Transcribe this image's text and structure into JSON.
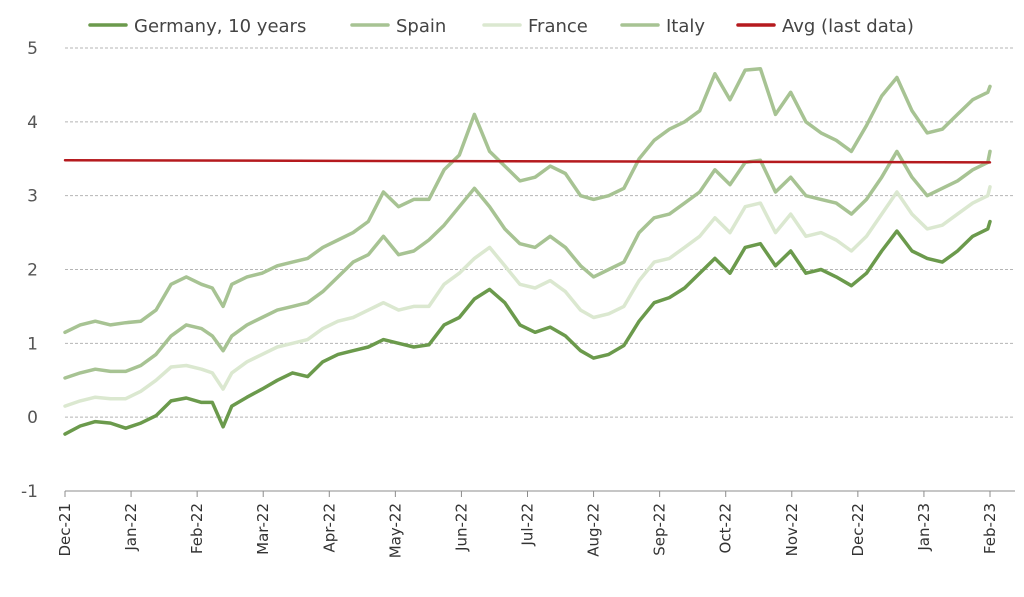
{
  "chart_data": {
    "type": "line",
    "title": "",
    "xlabel": "",
    "ylabel": "",
    "ylim": [
      -1,
      5
    ],
    "yticks": [
      "-1",
      "0",
      "1",
      "2",
      "3",
      "4",
      "5"
    ],
    "grid": true,
    "legend_position": "top",
    "x_tick_labels": [
      "Dec-21",
      "Jan-22",
      "Feb-22",
      "Mar-22",
      "Apr-22",
      "May-22",
      "Jun-22",
      "Jul-22",
      "Aug-22",
      "Sep-22",
      "Oct-22",
      "Nov-22",
      "Dec-22",
      "Jan-23",
      "Feb-23"
    ],
    "x_range": [
      "2021-12-01",
      "2023-02-01"
    ],
    "series": [
      {
        "name": "Germany, 10 years",
        "color": "#6b9a4c",
        "width": 3.5,
        "points": [
          [
            "2021-12-01",
            -0.23
          ],
          [
            "2021-12-08",
            -0.12
          ],
          [
            "2021-12-15",
            -0.06
          ],
          [
            "2021-12-22",
            -0.08
          ],
          [
            "2021-12-29",
            -0.15
          ],
          [
            "2022-01-05",
            -0.08
          ],
          [
            "2022-01-12",
            0.02
          ],
          [
            "2022-01-19",
            0.22
          ],
          [
            "2022-01-26",
            0.26
          ],
          [
            "2022-02-02",
            0.2
          ],
          [
            "2022-02-07",
            0.2
          ],
          [
            "2022-02-12",
            -0.13
          ],
          [
            "2022-02-16",
            0.15
          ],
          [
            "2022-02-23",
            0.27
          ],
          [
            "2022-03-02",
            0.38
          ],
          [
            "2022-03-09",
            0.5
          ],
          [
            "2022-03-16",
            0.6
          ],
          [
            "2022-03-23",
            0.55
          ],
          [
            "2022-03-30",
            0.75
          ],
          [
            "2022-04-06",
            0.85
          ],
          [
            "2022-04-13",
            0.9
          ],
          [
            "2022-04-20",
            0.95
          ],
          [
            "2022-04-27",
            1.05
          ],
          [
            "2022-05-04",
            1.0
          ],
          [
            "2022-05-11",
            0.95
          ],
          [
            "2022-05-18",
            0.98
          ],
          [
            "2022-05-25",
            1.25
          ],
          [
            "2022-06-01",
            1.35
          ],
          [
            "2022-06-08",
            1.6
          ],
          [
            "2022-06-15",
            1.73
          ],
          [
            "2022-06-22",
            1.55
          ],
          [
            "2022-06-29",
            1.25
          ],
          [
            "2022-07-06",
            1.15
          ],
          [
            "2022-07-13",
            1.22
          ],
          [
            "2022-07-20",
            1.1
          ],
          [
            "2022-07-27",
            0.9
          ],
          [
            "2022-08-02",
            0.8
          ],
          [
            "2022-08-09",
            0.85
          ],
          [
            "2022-08-16",
            0.97
          ],
          [
            "2022-08-23",
            1.3
          ],
          [
            "2022-08-30",
            1.55
          ],
          [
            "2022-09-06",
            1.62
          ],
          [
            "2022-09-13",
            1.75
          ],
          [
            "2022-09-20",
            1.95
          ],
          [
            "2022-09-27",
            2.15
          ],
          [
            "2022-10-04",
            1.95
          ],
          [
            "2022-10-11",
            2.3
          ],
          [
            "2022-10-18",
            2.35
          ],
          [
            "2022-10-25",
            2.05
          ],
          [
            "2022-11-01",
            2.25
          ],
          [
            "2022-11-08",
            1.95
          ],
          [
            "2022-11-15",
            2.0
          ],
          [
            "2022-11-22",
            1.9
          ],
          [
            "2022-11-29",
            1.78
          ],
          [
            "2022-12-06",
            1.95
          ],
          [
            "2022-12-13",
            2.25
          ],
          [
            "2022-12-20",
            2.52
          ],
          [
            "2022-12-27",
            2.25
          ],
          [
            "2023-01-03",
            2.15
          ],
          [
            "2023-01-10",
            2.1
          ],
          [
            "2023-01-17",
            2.25
          ],
          [
            "2023-01-24",
            2.45
          ],
          [
            "2023-01-31",
            2.55
          ],
          [
            "2023-02-01",
            2.65
          ]
        ]
      },
      {
        "name": "Spain",
        "color": "#a7c393",
        "width": 3.5,
        "points": [
          [
            "2021-12-01",
            0.53
          ],
          [
            "2021-12-08",
            0.6
          ],
          [
            "2021-12-15",
            0.65
          ],
          [
            "2021-12-22",
            0.62
          ],
          [
            "2021-12-29",
            0.62
          ],
          [
            "2022-01-05",
            0.7
          ],
          [
            "2022-01-12",
            0.85
          ],
          [
            "2022-01-19",
            1.1
          ],
          [
            "2022-01-26",
            1.25
          ],
          [
            "2022-02-02",
            1.2
          ],
          [
            "2022-02-07",
            1.1
          ],
          [
            "2022-02-12",
            0.9
          ],
          [
            "2022-02-16",
            1.1
          ],
          [
            "2022-02-23",
            1.25
          ],
          [
            "2022-03-02",
            1.35
          ],
          [
            "2022-03-09",
            1.45
          ],
          [
            "2022-03-16",
            1.5
          ],
          [
            "2022-03-23",
            1.55
          ],
          [
            "2022-03-30",
            1.7
          ],
          [
            "2022-04-06",
            1.9
          ],
          [
            "2022-04-13",
            2.1
          ],
          [
            "2022-04-20",
            2.2
          ],
          [
            "2022-04-27",
            2.45
          ],
          [
            "2022-05-04",
            2.2
          ],
          [
            "2022-05-11",
            2.25
          ],
          [
            "2022-05-18",
            2.4
          ],
          [
            "2022-05-25",
            2.6
          ],
          [
            "2022-06-01",
            2.85
          ],
          [
            "2022-06-08",
            3.1
          ],
          [
            "2022-06-15",
            2.85
          ],
          [
            "2022-06-22",
            2.55
          ],
          [
            "2022-06-29",
            2.35
          ],
          [
            "2022-07-06",
            2.3
          ],
          [
            "2022-07-13",
            2.45
          ],
          [
            "2022-07-20",
            2.3
          ],
          [
            "2022-07-27",
            2.05
          ],
          [
            "2022-08-02",
            1.9
          ],
          [
            "2022-08-09",
            2.0
          ],
          [
            "2022-08-16",
            2.1
          ],
          [
            "2022-08-23",
            2.5
          ],
          [
            "2022-08-30",
            2.7
          ],
          [
            "2022-09-06",
            2.75
          ],
          [
            "2022-09-13",
            2.9
          ],
          [
            "2022-09-20",
            3.05
          ],
          [
            "2022-09-27",
            3.35
          ],
          [
            "2022-10-04",
            3.15
          ],
          [
            "2022-10-11",
            3.45
          ],
          [
            "2022-10-18",
            3.48
          ],
          [
            "2022-10-25",
            3.05
          ],
          [
            "2022-11-01",
            3.25
          ],
          [
            "2022-11-08",
            3.0
          ],
          [
            "2022-11-15",
            2.95
          ],
          [
            "2022-11-22",
            2.9
          ],
          [
            "2022-11-29",
            2.75
          ],
          [
            "2022-12-06",
            2.95
          ],
          [
            "2022-12-13",
            3.25
          ],
          [
            "2022-12-20",
            3.6
          ],
          [
            "2022-12-27",
            3.25
          ],
          [
            "2023-01-03",
            3.0
          ],
          [
            "2023-01-10",
            3.1
          ],
          [
            "2023-01-17",
            3.2
          ],
          [
            "2023-01-24",
            3.35
          ],
          [
            "2023-01-31",
            3.45
          ],
          [
            "2023-02-01",
            3.6
          ]
        ]
      },
      {
        "name": "France",
        "color": "#dbe8d0",
        "width": 3.5,
        "points": [
          [
            "2021-12-01",
            0.15
          ],
          [
            "2021-12-08",
            0.22
          ],
          [
            "2021-12-15",
            0.27
          ],
          [
            "2021-12-22",
            0.25
          ],
          [
            "2021-12-29",
            0.25
          ],
          [
            "2022-01-05",
            0.35
          ],
          [
            "2022-01-12",
            0.5
          ],
          [
            "2022-01-19",
            0.68
          ],
          [
            "2022-01-26",
            0.7
          ],
          [
            "2022-02-02",
            0.65
          ],
          [
            "2022-02-07",
            0.6
          ],
          [
            "2022-02-12",
            0.38
          ],
          [
            "2022-02-16",
            0.6
          ],
          [
            "2022-02-23",
            0.75
          ],
          [
            "2022-03-02",
            0.85
          ],
          [
            "2022-03-09",
            0.95
          ],
          [
            "2022-03-16",
            1.0
          ],
          [
            "2022-03-23",
            1.05
          ],
          [
            "2022-03-30",
            1.2
          ],
          [
            "2022-04-06",
            1.3
          ],
          [
            "2022-04-13",
            1.35
          ],
          [
            "2022-04-20",
            1.45
          ],
          [
            "2022-04-27",
            1.55
          ],
          [
            "2022-05-04",
            1.45
          ],
          [
            "2022-05-11",
            1.5
          ],
          [
            "2022-05-18",
            1.5
          ],
          [
            "2022-05-25",
            1.8
          ],
          [
            "2022-06-01",
            1.95
          ],
          [
            "2022-06-08",
            2.15
          ],
          [
            "2022-06-15",
            2.3
          ],
          [
            "2022-06-22",
            2.05
          ],
          [
            "2022-06-29",
            1.8
          ],
          [
            "2022-07-06",
            1.75
          ],
          [
            "2022-07-13",
            1.85
          ],
          [
            "2022-07-20",
            1.7
          ],
          [
            "2022-07-27",
            1.45
          ],
          [
            "2022-08-02",
            1.35
          ],
          [
            "2022-08-09",
            1.4
          ],
          [
            "2022-08-16",
            1.5
          ],
          [
            "2022-08-23",
            1.85
          ],
          [
            "2022-08-30",
            2.1
          ],
          [
            "2022-09-06",
            2.15
          ],
          [
            "2022-09-13",
            2.3
          ],
          [
            "2022-09-20",
            2.45
          ],
          [
            "2022-09-27",
            2.7
          ],
          [
            "2022-10-04",
            2.5
          ],
          [
            "2022-10-11",
            2.85
          ],
          [
            "2022-10-18",
            2.9
          ],
          [
            "2022-10-25",
            2.5
          ],
          [
            "2022-11-01",
            2.75
          ],
          [
            "2022-11-08",
            2.45
          ],
          [
            "2022-11-15",
            2.5
          ],
          [
            "2022-11-22",
            2.4
          ],
          [
            "2022-11-29",
            2.25
          ],
          [
            "2022-12-06",
            2.45
          ],
          [
            "2022-12-13",
            2.75
          ],
          [
            "2022-12-20",
            3.05
          ],
          [
            "2022-12-27",
            2.75
          ],
          [
            "2023-01-03",
            2.55
          ],
          [
            "2023-01-10",
            2.6
          ],
          [
            "2023-01-17",
            2.75
          ],
          [
            "2023-01-24",
            2.9
          ],
          [
            "2023-01-31",
            3.0
          ],
          [
            "2023-02-01",
            3.12
          ]
        ]
      },
      {
        "name": "Italy",
        "color": "#a7c393",
        "width": 3.5,
        "points": [
          [
            "2021-12-01",
            1.15
          ],
          [
            "2021-12-08",
            1.25
          ],
          [
            "2021-12-15",
            1.3
          ],
          [
            "2021-12-22",
            1.25
          ],
          [
            "2021-12-29",
            1.28
          ],
          [
            "2022-01-05",
            1.3
          ],
          [
            "2022-01-12",
            1.45
          ],
          [
            "2022-01-19",
            1.8
          ],
          [
            "2022-01-26",
            1.9
          ],
          [
            "2022-02-02",
            1.8
          ],
          [
            "2022-02-07",
            1.75
          ],
          [
            "2022-02-12",
            1.5
          ],
          [
            "2022-02-16",
            1.8
          ],
          [
            "2022-02-23",
            1.9
          ],
          [
            "2022-03-02",
            1.95
          ],
          [
            "2022-03-09",
            2.05
          ],
          [
            "2022-03-16",
            2.1
          ],
          [
            "2022-03-23",
            2.15
          ],
          [
            "2022-03-30",
            2.3
          ],
          [
            "2022-04-06",
            2.4
          ],
          [
            "2022-04-13",
            2.5
          ],
          [
            "2022-04-20",
            2.65
          ],
          [
            "2022-04-27",
            3.05
          ],
          [
            "2022-05-04",
            2.85
          ],
          [
            "2022-05-11",
            2.95
          ],
          [
            "2022-05-18",
            2.95
          ],
          [
            "2022-05-25",
            3.35
          ],
          [
            "2022-06-01",
            3.55
          ],
          [
            "2022-06-08",
            4.1
          ],
          [
            "2022-06-15",
            3.6
          ],
          [
            "2022-06-22",
            3.4
          ],
          [
            "2022-06-29",
            3.2
          ],
          [
            "2022-07-06",
            3.25
          ],
          [
            "2022-07-13",
            3.4
          ],
          [
            "2022-07-20",
            3.3
          ],
          [
            "2022-07-27",
            3.0
          ],
          [
            "2022-08-02",
            2.95
          ],
          [
            "2022-08-09",
            3.0
          ],
          [
            "2022-08-16",
            3.1
          ],
          [
            "2022-08-23",
            3.5
          ],
          [
            "2022-08-30",
            3.75
          ],
          [
            "2022-09-06",
            3.9
          ],
          [
            "2022-09-13",
            4.0
          ],
          [
            "2022-09-20",
            4.15
          ],
          [
            "2022-09-27",
            4.65
          ],
          [
            "2022-10-04",
            4.3
          ],
          [
            "2022-10-11",
            4.7
          ],
          [
            "2022-10-18",
            4.72
          ],
          [
            "2022-10-25",
            4.1
          ],
          [
            "2022-11-01",
            4.4
          ],
          [
            "2022-11-08",
            4.0
          ],
          [
            "2022-11-15",
            3.85
          ],
          [
            "2022-11-22",
            3.75
          ],
          [
            "2022-11-29",
            3.6
          ],
          [
            "2022-12-06",
            3.95
          ],
          [
            "2022-12-13",
            4.35
          ],
          [
            "2022-12-20",
            4.6
          ],
          [
            "2022-12-27",
            4.15
          ],
          [
            "2023-01-03",
            3.85
          ],
          [
            "2023-01-10",
            3.9
          ],
          [
            "2023-01-17",
            4.1
          ],
          [
            "2023-01-24",
            4.3
          ],
          [
            "2023-01-31",
            4.4
          ],
          [
            "2023-02-01",
            4.48
          ]
        ]
      },
      {
        "name": "Avg (last data)",
        "color": "#b51a1e",
        "width": 2.5,
        "points": [
          [
            "2021-12-01",
            3.48
          ],
          [
            "2023-02-01",
            3.45
          ]
        ]
      }
    ]
  }
}
